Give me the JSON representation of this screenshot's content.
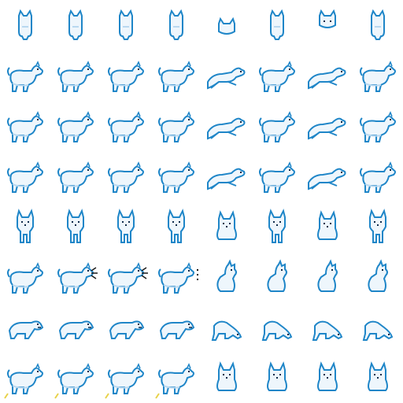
{
  "sheet": {
    "rows": 8,
    "cols": 8,
    "colors": {
      "outline": "#1f86c8",
      "fill": "#eef6fc",
      "shade": "#b8d8f0",
      "eye": "#0d2a4a",
      "bark_dot": "#1a1a1a",
      "puddle": "#e8d24a"
    },
    "rows_data": [
      {
        "pose": "back",
        "frames": [
          "b",
          "b",
          "b",
          "b",
          "bp",
          "b",
          "bh",
          "b"
        ]
      },
      {
        "pose": "run",
        "frames": [
          "s",
          "s",
          "s",
          "s",
          "l",
          "s",
          "l",
          "s"
        ]
      },
      {
        "pose": "walk",
        "frames": [
          "w",
          "w",
          "w",
          "w",
          "l",
          "w",
          "l",
          "w"
        ]
      },
      {
        "pose": "trot",
        "frames": [
          "t",
          "t",
          "t",
          "t",
          "l",
          "t",
          "l",
          "t"
        ]
      },
      {
        "pose": "front",
        "frames": [
          "f",
          "f",
          "f",
          "f",
          "fs",
          "f",
          "fs",
          "f"
        ]
      },
      {
        "pose": "bark",
        "frames": [
          "s",
          "k",
          "k",
          "d",
          "sit",
          "sit",
          "sit",
          "sit"
        ]
      },
      {
        "pose": "growl",
        "frames": [
          "g",
          "g",
          "g",
          "g",
          "sn",
          "sn",
          "sn",
          "sn"
        ]
      },
      {
        "pose": "pee",
        "frames": [
          "p",
          "p",
          "p",
          "p",
          "fsit",
          "fsit",
          "fsit",
          "fsit"
        ]
      }
    ]
  }
}
